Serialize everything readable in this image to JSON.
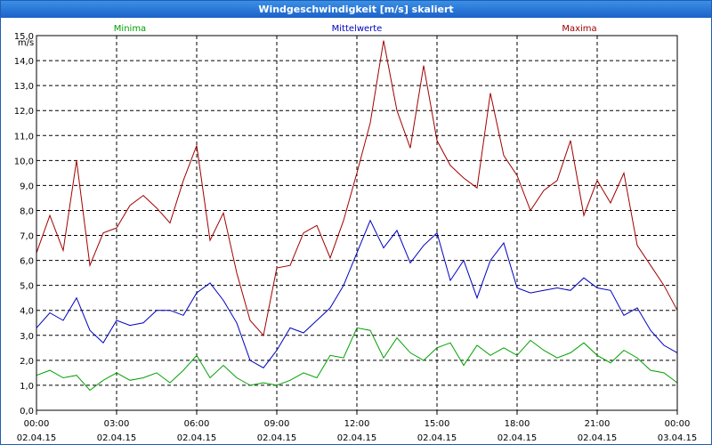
{
  "window": {
    "title": "Windgeschwindigkeit [m/s] skaliert"
  },
  "chart_data": {
    "type": "line",
    "y_unit": "m/s",
    "ylim": [
      0,
      15
    ],
    "y_ticks": [
      "0,0",
      "1,0",
      "2,0",
      "3,0",
      "4,0",
      "5,0",
      "6,0",
      "7,0",
      "8,0",
      "9,0",
      "10,0",
      "11,0",
      "12,0",
      "13,0",
      "14,0",
      "15,0"
    ],
    "xlim": [
      0,
      24
    ],
    "x_ticks": [
      {
        "time": "00:00",
        "date": "02.04.15"
      },
      {
        "time": "03:00",
        "date": "02.04.15"
      },
      {
        "time": "06:00",
        "date": "02.04.15"
      },
      {
        "time": "09:00",
        "date": "02.04.15"
      },
      {
        "time": "12:00",
        "date": "02.04.15"
      },
      {
        "time": "15:00",
        "date": "02.04.15"
      },
      {
        "time": "18:00",
        "date": "02.04.15"
      },
      {
        "time": "21:00",
        "date": "02.04.15"
      },
      {
        "time": "00:00",
        "date": "03.04.15"
      }
    ],
    "grid": true,
    "legend_position": "top",
    "series": [
      {
        "name": "Minima",
        "color": "#00a000",
        "x": [
          0,
          0.5,
          1,
          1.5,
          2,
          2.5,
          3,
          3.5,
          4,
          4.5,
          5,
          5.5,
          6,
          6.5,
          7,
          7.5,
          8,
          8.5,
          9,
          9.5,
          10,
          10.5,
          11,
          11.5,
          12,
          12.5,
          13,
          13.5,
          14,
          14.5,
          15,
          15.5,
          16,
          16.5,
          17,
          17.5,
          18,
          18.5,
          19,
          19.5,
          20,
          20.5,
          21,
          21.5,
          22,
          22.5,
          23,
          23.5,
          24
        ],
        "values": [
          1.4,
          1.6,
          1.3,
          1.4,
          0.8,
          1.2,
          1.5,
          1.2,
          1.3,
          1.5,
          1.1,
          1.6,
          2.2,
          1.3,
          1.8,
          1.3,
          1.0,
          1.1,
          1.0,
          1.2,
          1.5,
          1.3,
          2.2,
          2.1,
          3.3,
          3.2,
          2.1,
          2.9,
          2.3,
          2.0,
          2.5,
          2.7,
          1.8,
          2.6,
          2.2,
          2.5,
          2.2,
          2.8,
          2.4,
          2.1,
          2.3,
          2.7,
          2.2,
          1.9,
          2.4,
          2.1,
          1.6,
          1.5,
          1.1
        ]
      },
      {
        "name": "Mittelwerte",
        "color": "#0000c0",
        "x": [
          0,
          0.5,
          1,
          1.5,
          2,
          2.5,
          3,
          3.5,
          4,
          4.5,
          5,
          5.5,
          6,
          6.5,
          7,
          7.5,
          8,
          8.5,
          9,
          9.5,
          10,
          10.5,
          11,
          11.5,
          12,
          12.5,
          13,
          13.5,
          14,
          14.5,
          15,
          15.5,
          16,
          16.5,
          17,
          17.5,
          18,
          18.5,
          19,
          19.5,
          20,
          20.5,
          21,
          21.5,
          22,
          22.5,
          23,
          23.5,
          24
        ],
        "values": [
          3.3,
          3.9,
          3.6,
          4.5,
          3.2,
          2.7,
          3.6,
          3.4,
          3.5,
          4.0,
          4.0,
          3.8,
          4.7,
          5.1,
          4.4,
          3.5,
          2.0,
          1.7,
          2.4,
          3.3,
          3.1,
          3.6,
          4.1,
          5.0,
          6.3,
          7.6,
          6.5,
          7.2,
          5.9,
          6.6,
          7.1,
          5.2,
          6.0,
          4.5,
          6.0,
          6.7,
          4.9,
          4.7,
          4.8,
          4.9,
          4.8,
          5.3,
          4.9,
          4.8,
          3.8,
          4.1,
          3.2,
          2.6,
          2.3
        ]
      },
      {
        "name": "Maxima",
        "color": "#a00000",
        "x": [
          0,
          0.5,
          1,
          1.5,
          2,
          2.5,
          3,
          3.5,
          4,
          4.5,
          5,
          5.5,
          6,
          6.5,
          7,
          7.5,
          8,
          8.5,
          9,
          9.5,
          10,
          10.5,
          11,
          11.5,
          12,
          12.5,
          13,
          13.5,
          14,
          14.5,
          15,
          15.5,
          16,
          16.5,
          17,
          17.5,
          18,
          18.5,
          19,
          19.5,
          20,
          20.5,
          21,
          21.5,
          22,
          22.5,
          23,
          23.5,
          24
        ],
        "values": [
          6.3,
          7.8,
          6.4,
          10.0,
          5.8,
          7.1,
          7.3,
          8.2,
          8.6,
          8.1,
          7.5,
          9.2,
          10.6,
          6.8,
          7.9,
          5.5,
          3.6,
          3.0,
          5.7,
          5.8,
          7.1,
          7.4,
          6.1,
          7.6,
          9.5,
          11.5,
          14.8,
          12.0,
          10.5,
          13.8,
          10.8,
          9.8,
          9.3,
          8.9,
          12.7,
          10.2,
          9.4,
          8.0,
          8.8,
          9.2,
          10.8,
          7.8,
          9.2,
          8.3,
          9.5,
          6.6,
          5.8,
          5.0,
          4.0
        ]
      }
    ]
  }
}
